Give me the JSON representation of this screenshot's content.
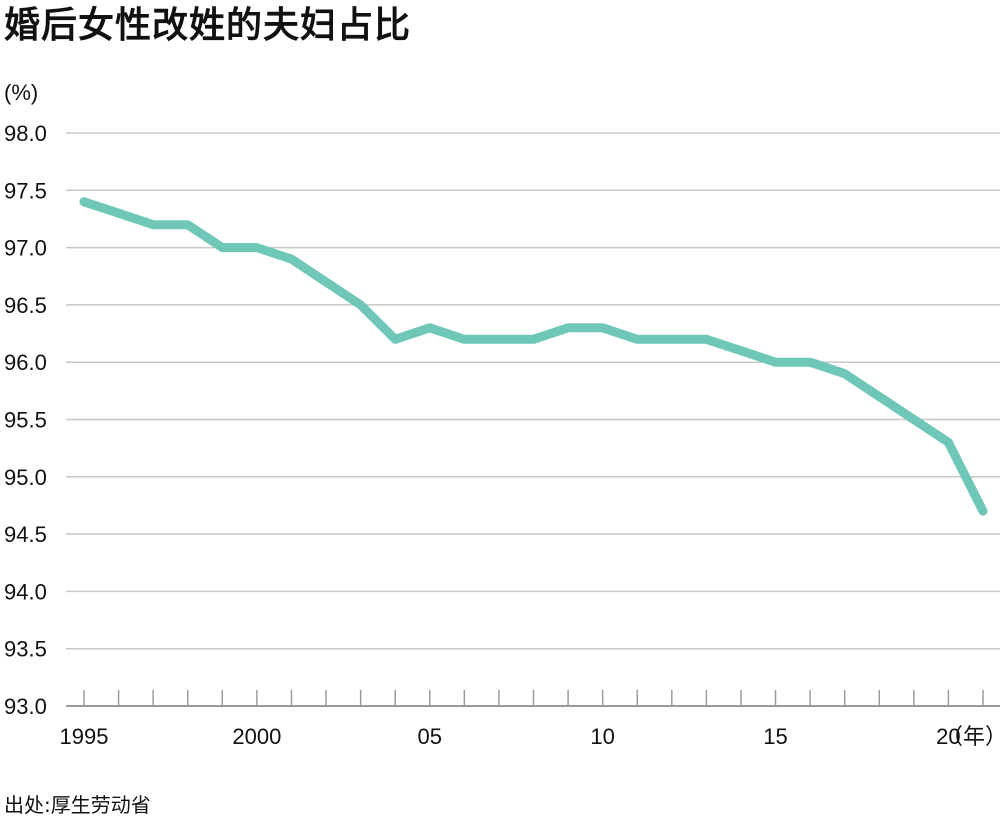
{
  "title": "婚后女性改姓的夫妇占比",
  "source": "出处:厚生劳动省",
  "chart_data": {
    "type": "line",
    "title": "婚后女性改姓的夫妇占比",
    "ylabel": "(%)",
    "xunit": "（年）",
    "ylim": [
      93.0,
      98.0
    ],
    "yticks": [
      "93.0",
      "93.5",
      "94.0",
      "94.5",
      "95.0",
      "95.5",
      "96.0",
      "96.5",
      "97.0",
      "97.5",
      "98.0"
    ],
    "xticks": [
      {
        "year": 1995,
        "label": "1995"
      },
      {
        "year": 2000,
        "label": "2000"
      },
      {
        "year": 2005,
        "label": "05"
      },
      {
        "year": 2010,
        "label": "10"
      },
      {
        "year": 2015,
        "label": "15"
      },
      {
        "year": 2020,
        "label": "20"
      }
    ],
    "grid": true,
    "x": [
      1995,
      1996,
      1997,
      1998,
      1999,
      2000,
      2001,
      2002,
      2003,
      2004,
      2005,
      2006,
      2007,
      2008,
      2009,
      2010,
      2011,
      2012,
      2013,
      2014,
      2015,
      2016,
      2017,
      2018,
      2019,
      2020,
      2021
    ],
    "series": [
      {
        "values": [
          97.4,
          97.3,
          97.2,
          97.2,
          97.0,
          97.0,
          96.9,
          96.7,
          96.5,
          96.2,
          96.3,
          96.2,
          96.2,
          96.2,
          96.3,
          96.3,
          96.2,
          96.2,
          96.2,
          96.1,
          96.0,
          96.0,
          95.9,
          95.7,
          95.5,
          95.3,
          94.7
        ],
        "color": "#6fc7b8"
      }
    ],
    "gridColor": "#c8c8c8",
    "axisColor": "#9a9a9a"
  }
}
